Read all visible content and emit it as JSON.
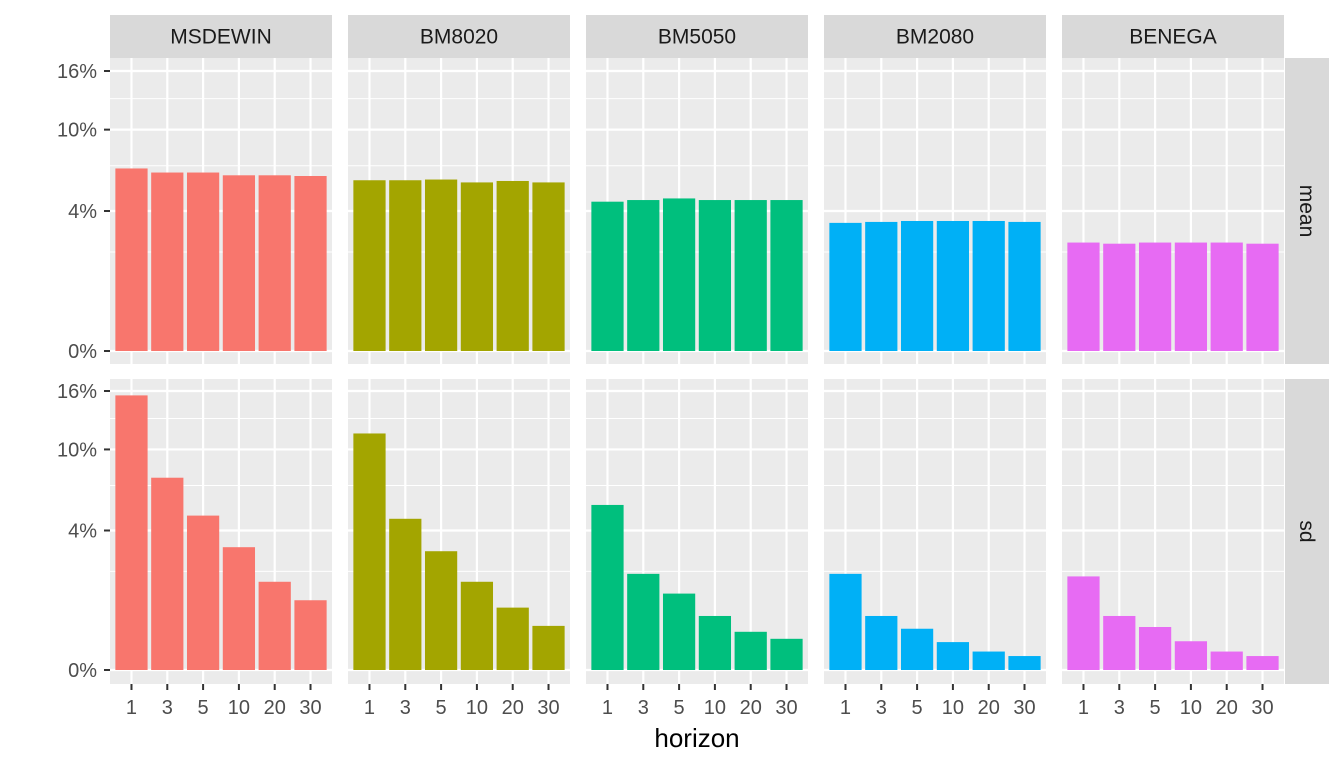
{
  "chart_data": {
    "type": "bar",
    "facet_rows": [
      "mean",
      "sd"
    ],
    "facet_cols": [
      "MSDEWIN",
      "BM8020",
      "BM5050",
      "BM2080",
      "BENEGA"
    ],
    "categories": [
      "1",
      "3",
      "5",
      "10",
      "20",
      "30"
    ],
    "xlabel": "horizon",
    "ylabel": "",
    "y_axis": {
      "scale": "sqrt",
      "ticks": [
        0,
        4,
        10,
        16
      ],
      "tick_labels": [
        "0%",
        "4%",
        "10%",
        "16%"
      ],
      "ylim": [
        0,
        16
      ]
    },
    "grid": true,
    "legend": "none",
    "colors": {
      "MSDEWIN": "#F8766D",
      "BM8020": "#A3A500",
      "BM5050": "#00BF7D",
      "BM2080": "#00B0F6",
      "BENEGA": "#E76BF3"
    },
    "panel_background": "#EBEBEB",
    "strip_background": "#D9D9D9",
    "series": [
      {
        "row": "mean",
        "col": "MSDEWIN",
        "values": [
          6.8,
          6.5,
          6.5,
          6.3,
          6.3,
          6.25
        ]
      },
      {
        "row": "mean",
        "col": "BM8020",
        "values": [
          5.95,
          5.95,
          6.0,
          5.8,
          5.9,
          5.8
        ]
      },
      {
        "row": "mean",
        "col": "BM5050",
        "values": [
          4.55,
          4.65,
          4.75,
          4.65,
          4.65,
          4.65
        ]
      },
      {
        "row": "mean",
        "col": "BM2080",
        "values": [
          3.35,
          3.4,
          3.45,
          3.45,
          3.45,
          3.4
        ]
      },
      {
        "row": "mean",
        "col": "BENEGA",
        "values": [
          2.4,
          2.35,
          2.4,
          2.4,
          2.4,
          2.35
        ]
      },
      {
        "row": "sd",
        "col": "MSDEWIN",
        "values": [
          15.5,
          7.6,
          4.9,
          3.1,
          1.6,
          1.0
        ]
      },
      {
        "row": "sd",
        "col": "BM8020",
        "values": [
          11.5,
          4.7,
          2.9,
          1.6,
          0.8,
          0.4
        ]
      },
      {
        "row": "sd",
        "col": "BM5050",
        "values": [
          5.6,
          1.9,
          1.2,
          0.6,
          0.3,
          0.2
        ]
      },
      {
        "row": "sd",
        "col": "BM2080",
        "values": [
          1.9,
          0.6,
          0.35,
          0.16,
          0.07,
          0.04
        ]
      },
      {
        "row": "sd",
        "col": "BENEGA",
        "values": [
          1.8,
          0.6,
          0.38,
          0.17,
          0.07,
          0.04
        ]
      }
    ]
  }
}
